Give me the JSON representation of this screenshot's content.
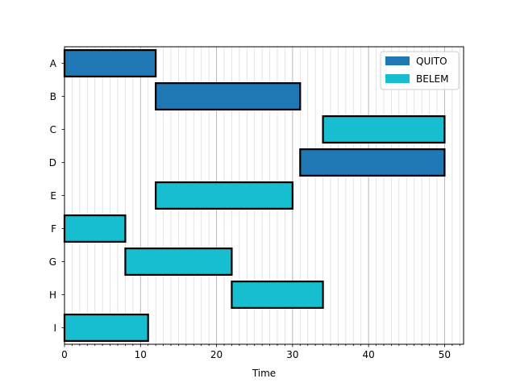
{
  "chart_data": {
    "type": "bar",
    "orientation": "horizontal",
    "chart_style": "gantt",
    "xlabel": "Time",
    "ylabel": "",
    "title": "",
    "xlim": [
      0,
      52.5
    ],
    "xticks": [
      0,
      10,
      20,
      30,
      40,
      50
    ],
    "minor_xtick_step": 1,
    "grid": "vertical major and minor",
    "legend_position": "top-right",
    "legend": [
      {
        "name": "QUITO",
        "color": "#1f77b4"
      },
      {
        "name": "BELEM",
        "color": "#17becf"
      }
    ],
    "tasks": [
      {
        "label": "A",
        "start": 0,
        "end": 12,
        "series": "QUITO"
      },
      {
        "label": "B",
        "start": 12,
        "end": 31,
        "series": "QUITO"
      },
      {
        "label": "C",
        "start": 34,
        "end": 50,
        "series": "BELEM"
      },
      {
        "label": "D",
        "start": 31,
        "end": 50,
        "series": "QUITO"
      },
      {
        "label": "E",
        "start": 12,
        "end": 30,
        "series": "BELEM"
      },
      {
        "label": "F",
        "start": 0,
        "end": 8,
        "series": "BELEM"
      },
      {
        "label": "G",
        "start": 8,
        "end": 22,
        "series": "BELEM"
      },
      {
        "label": "H",
        "start": 22,
        "end": 34,
        "series": "BELEM"
      },
      {
        "label": "I",
        "start": 0,
        "end": 11,
        "series": "BELEM"
      }
    ]
  }
}
